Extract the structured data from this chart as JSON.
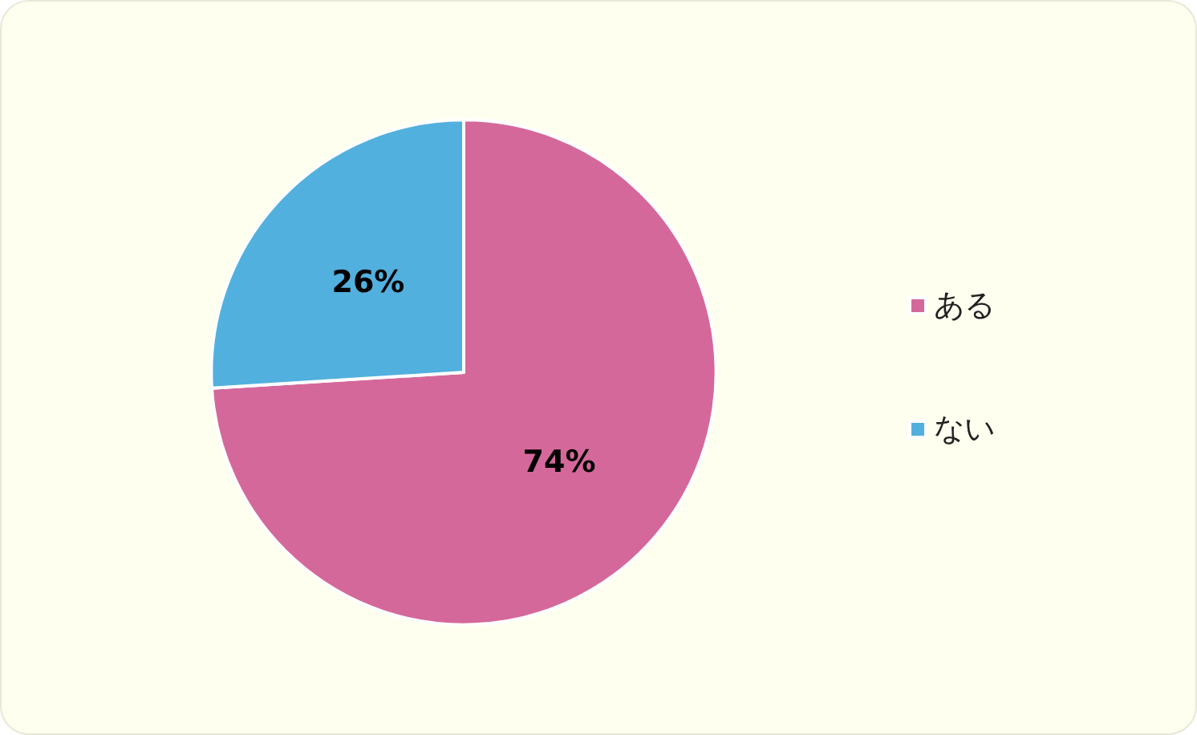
{
  "chart_data": {
    "type": "pie",
    "categories": [
      "ある",
      "ない"
    ],
    "values": [
      74,
      26
    ],
    "colors": [
      "#d5689a",
      "#52b0de"
    ],
    "value_labels": [
      "74%",
      "26%"
    ],
    "legend": "right"
  }
}
